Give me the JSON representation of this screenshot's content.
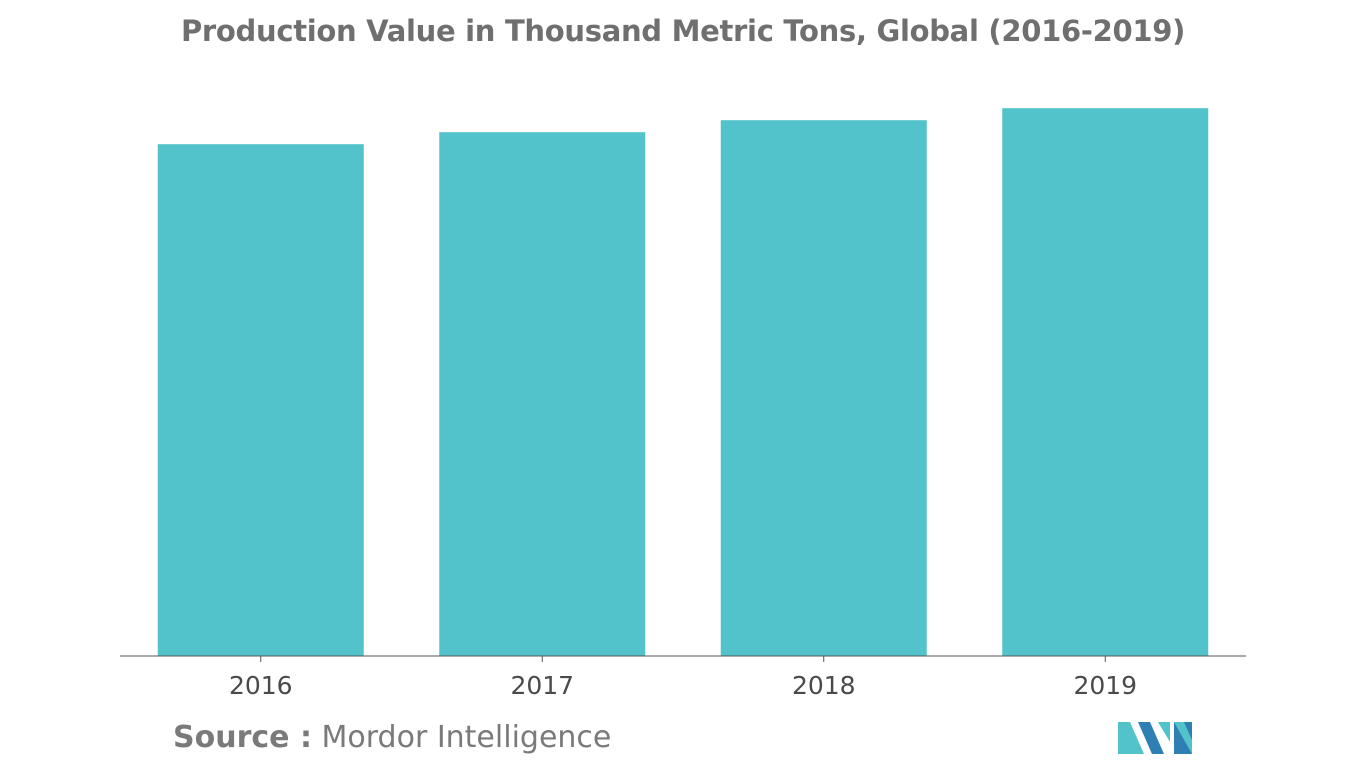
{
  "chart_data": {
    "type": "bar",
    "title": "Production Value in Thousand Metric Tons, Global (2016-2019)",
    "categories": [
      "2016",
      "2017",
      "2018",
      "2019"
    ],
    "values": [
      85.3,
      87.3,
      89.3,
      91.3
    ],
    "ylim": [
      0,
      100
    ],
    "xlabel": "",
    "ylabel": "",
    "grid": false,
    "bar_color": "#52c3ca",
    "axis_color": "#555555"
  },
  "source": {
    "label": "Source :",
    "text": "Mordor Intelligence"
  },
  "logo": {
    "icon": "mordor-intelligence-logo-icon",
    "colors": [
      "#52c3ca",
      "#2e7fb3"
    ]
  }
}
